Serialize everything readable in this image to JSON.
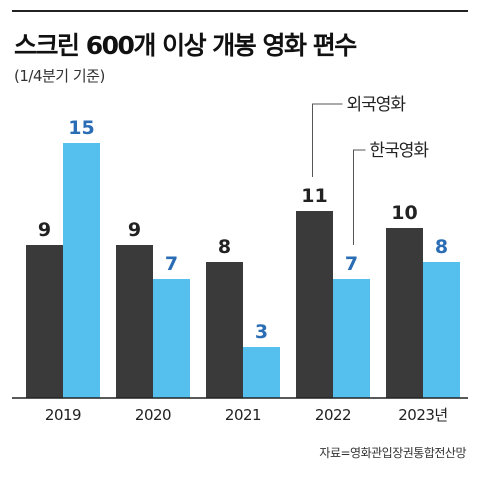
{
  "title": "스크린 600개 이상 개봉 영화 편수",
  "subtitle": "(1/4분기 기준)",
  "source": "자료=영화관입장권통합전산망",
  "colors": {
    "foreign": "#3a3a3a",
    "korean": "#55c0ee",
    "foreign_label": "#222222",
    "korean_label": "#2a6db5"
  },
  "chart_data": {
    "type": "bar",
    "title": "스크린 600개 이상 개봉 영화 편수",
    "subtitle": "(1/4분기 기준)",
    "xlabel": "",
    "ylabel": "",
    "categories": [
      "2019",
      "2020",
      "2021",
      "2022",
      "2023년"
    ],
    "series": [
      {
        "name": "외국영화",
        "values": [
          9,
          9,
          8,
          11,
          10
        ]
      },
      {
        "name": "한국영화",
        "values": [
          15,
          7,
          3,
          7,
          8
        ]
      }
    ],
    "ylim": [
      0,
      16
    ],
    "grid": false,
    "legend": "callout labels on 2022 bars"
  }
}
